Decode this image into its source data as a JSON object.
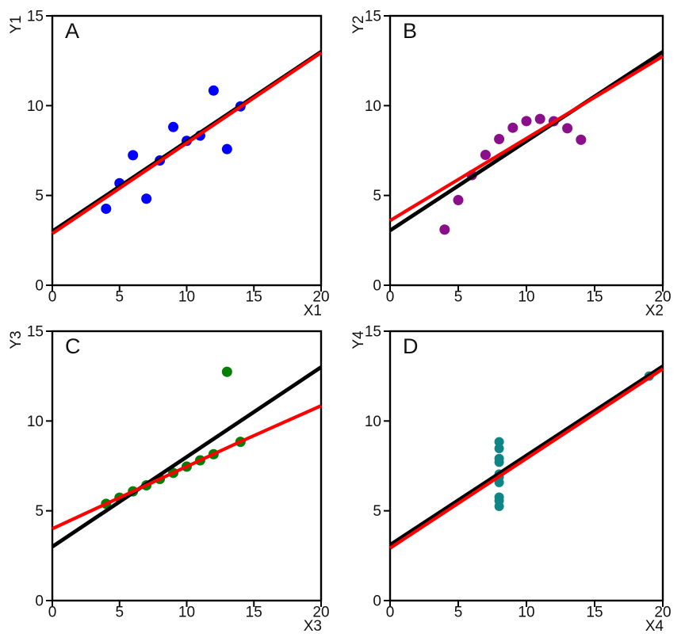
{
  "chart_data": [
    {
      "type": "scatter",
      "panel_label": "A",
      "xlabel": "X1",
      "ylabel": "Y1",
      "xlim": [
        0,
        20
      ],
      "ylim": [
        0,
        15
      ],
      "xticks": [
        0,
        5,
        10,
        15,
        20
      ],
      "yticks": [
        0,
        5,
        10,
        15
      ],
      "grid": false,
      "point_color": "#0000fe",
      "x": [
        10,
        8,
        13,
        9,
        11,
        14,
        6,
        4,
        12,
        7,
        5
      ],
      "y": [
        8.04,
        6.95,
        7.58,
        8.81,
        8.33,
        9.96,
        7.24,
        4.26,
        10.84,
        4.82,
        5.68
      ],
      "lines": [
        {
          "name": "least-squares-line",
          "color": "#000000",
          "points": [
            [
              0,
              3.0
            ],
            [
              20,
              13.0
            ]
          ]
        },
        {
          "name": "trend-line",
          "color": "#fe0000",
          "points": [
            [
              0,
              2.88
            ],
            [
              20,
              12.95
            ]
          ]
        }
      ]
    },
    {
      "type": "scatter",
      "panel_label": "B",
      "xlabel": "X2",
      "ylabel": "Y2",
      "xlim": [
        0,
        20
      ],
      "ylim": [
        0,
        15
      ],
      "xticks": [
        0,
        5,
        10,
        15,
        20
      ],
      "yticks": [
        0,
        5,
        10,
        15
      ],
      "grid": false,
      "point_color": "#8b0e8b",
      "x": [
        10,
        8,
        13,
        9,
        11,
        14,
        6,
        4,
        12,
        7,
        5
      ],
      "y": [
        9.14,
        8.14,
        8.74,
        8.77,
        9.26,
        8.1,
        6.13,
        3.1,
        9.13,
        7.26,
        4.74
      ],
      "lines": [
        {
          "name": "least-squares-line",
          "color": "#000000",
          "points": [
            [
              0,
              3.05
            ],
            [
              20,
              13.0
            ]
          ]
        },
        {
          "name": "trend-line",
          "color": "#fe0000",
          "points": [
            [
              0,
              3.6
            ],
            [
              20,
              12.75
            ]
          ]
        }
      ]
    },
    {
      "type": "scatter",
      "panel_label": "C",
      "xlabel": "X3",
      "ylabel": "Y3",
      "xlim": [
        0,
        20
      ],
      "ylim": [
        0,
        15
      ],
      "xticks": [
        0,
        5,
        10,
        15,
        20
      ],
      "yticks": [
        0,
        5,
        10,
        15
      ],
      "grid": false,
      "point_color": "#037f03",
      "x": [
        10,
        8,
        13,
        9,
        11,
        14,
        6,
        4,
        12,
        7,
        5
      ],
      "y": [
        7.46,
        6.77,
        12.74,
        7.11,
        7.81,
        8.84,
        6.08,
        5.39,
        8.15,
        6.42,
        5.73
      ],
      "lines": [
        {
          "name": "least-squares-line",
          "color": "#000000",
          "points": [
            [
              0,
              3.0
            ],
            [
              20,
              13.0
            ]
          ]
        },
        {
          "name": "trend-line",
          "color": "#fe0000",
          "points": [
            [
              0,
              4.0
            ],
            [
              14,
              8.85
            ],
            [
              20,
              10.85
            ]
          ]
        }
      ]
    },
    {
      "type": "scatter",
      "panel_label": "D",
      "xlabel": "X4",
      "ylabel": "Y4",
      "xlim": [
        0,
        20
      ],
      "ylim": [
        0,
        15
      ],
      "xticks": [
        0,
        5,
        10,
        15,
        20
      ],
      "yticks": [
        0,
        5,
        10,
        15
      ],
      "grid": false,
      "point_color": "#108585",
      "x": [
        8,
        8,
        8,
        8,
        8,
        8,
        8,
        19,
        8,
        8,
        8
      ],
      "y": [
        6.58,
        5.76,
        7.71,
        8.84,
        8.47,
        7.04,
        5.25,
        12.5,
        5.56,
        7.91,
        6.89
      ],
      "lines": [
        {
          "name": "least-squares-line",
          "color": "#000000",
          "points": [
            [
              0,
              3.1
            ],
            [
              20,
              13.05
            ]
          ]
        },
        {
          "name": "trend-line",
          "color": "#fe0000",
          "points": [
            [
              0,
              2.92
            ],
            [
              20,
              12.9
            ]
          ]
        }
      ]
    }
  ],
  "colors": {
    "background": "#ffffff",
    "axis": "#000000",
    "regression_line": "#000000",
    "trend_line": "#fe0000",
    "points_a": "#0000fe",
    "points_b": "#8b0e8b",
    "points_c": "#037f03",
    "points_d": "#108585"
  }
}
